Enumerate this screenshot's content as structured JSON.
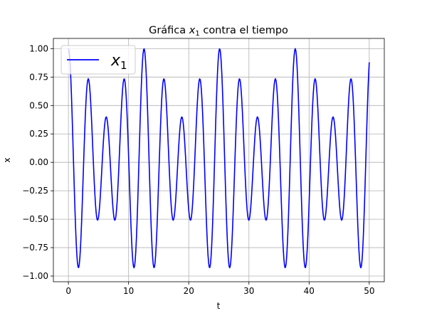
{
  "chart_data": {
    "type": "line",
    "title_prefix": "Gráfica ",
    "title_var": "x",
    "title_sub": "1",
    "title_suffix": " contra el tiempo",
    "xlabel": "t",
    "ylabel": "x",
    "xlim": [
      -2.5,
      52.5
    ],
    "ylim": [
      -1.05,
      1.09
    ],
    "x_ticks": [
      0,
      10,
      20,
      30,
      40,
      50
    ],
    "x_tick_labels": [
      "0",
      "10",
      "20",
      "30",
      "40",
      "50"
    ],
    "y_ticks": [
      -1.0,
      -0.75,
      -0.5,
      -0.25,
      0.0,
      0.25,
      0.5,
      0.75,
      1.0
    ],
    "y_tick_labels": [
      "−1.00",
      "−0.75",
      "−0.50",
      "−0.25",
      "0.00",
      "0.25",
      "0.50",
      "0.75",
      "1.00"
    ],
    "grid": true,
    "legend_position": "top-left",
    "series": [
      {
        "name_var": "x",
        "name_sub": "1",
        "color": "#0000ff",
        "x_range": [
          0,
          50
        ],
        "samples": 501,
        "components": [
          {
            "amplitude": 0.7,
            "omega": 2.0
          },
          {
            "amplitude": 0.3,
            "omega": 1.5
          }
        ]
      }
    ]
  }
}
